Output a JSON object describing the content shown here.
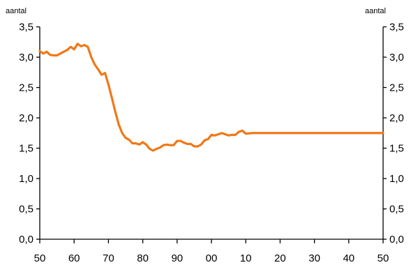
{
  "chart_data": {
    "type": "line",
    "title": "",
    "ylabel_left": "aantal",
    "ylabel_right": "aantal",
    "ylim": [
      0,
      3.5
    ],
    "y_ticks": [
      0,
      0.5,
      1,
      1.5,
      2,
      2.5,
      3,
      3.5
    ],
    "y_tick_labels": [
      "0,0",
      "0,5",
      "1,0",
      "1,5",
      "2,0",
      "2,5",
      "3,0",
      "3,5"
    ],
    "xlim": [
      1950,
      2050
    ],
    "x_ticks": [
      1950,
      1960,
      1970,
      1980,
      1990,
      2000,
      2010,
      2020,
      2030,
      2040,
      2050
    ],
    "x_tick_labels": [
      "50",
      "60",
      "70",
      "80",
      "90",
      "00",
      "10",
      "20",
      "30",
      "40",
      "50"
    ],
    "grid": false,
    "legend": "none",
    "series": [
      {
        "color": "#f07818",
        "x": [
          1950,
          1951,
          1952,
          1953,
          1954,
          1955,
          1956,
          1957,
          1958,
          1959,
          1960,
          1961,
          1962,
          1963,
          1964,
          1965,
          1966,
          1967,
          1968,
          1969,
          1970,
          1971,
          1972,
          1973,
          1974,
          1975,
          1976,
          1977,
          1978,
          1979,
          1980,
          1981,
          1982,
          1983,
          1984,
          1985,
          1986,
          1987,
          1988,
          1989,
          1990,
          1991,
          1992,
          1993,
          1994,
          1995,
          1996,
          1997,
          1998,
          1999,
          2000,
          2001,
          2002,
          2003,
          2004,
          2005,
          2006,
          2007,
          2008,
          2009,
          2010,
          2012,
          2015,
          2020,
          2025,
          2030,
          2035,
          2040,
          2045,
          2050
        ],
        "y": [
          3.1,
          3.06,
          3.09,
          3.04,
          3.03,
          3.03,
          3.06,
          3.09,
          3.12,
          3.17,
          3.13,
          3.22,
          3.18,
          3.2,
          3.17,
          3.0,
          2.88,
          2.8,
          2.71,
          2.74,
          2.55,
          2.33,
          2.1,
          1.89,
          1.75,
          1.67,
          1.64,
          1.58,
          1.58,
          1.56,
          1.6,
          1.56,
          1.49,
          1.46,
          1.49,
          1.51,
          1.55,
          1.56,
          1.55,
          1.55,
          1.62,
          1.62,
          1.59,
          1.57,
          1.57,
          1.53,
          1.53,
          1.56,
          1.63,
          1.65,
          1.72,
          1.71,
          1.73,
          1.75,
          1.73,
          1.71,
          1.72,
          1.72,
          1.77,
          1.79,
          1.74,
          1.75,
          1.75,
          1.75,
          1.75,
          1.75,
          1.75,
          1.75,
          1.75,
          1.75
        ]
      }
    ]
  }
}
